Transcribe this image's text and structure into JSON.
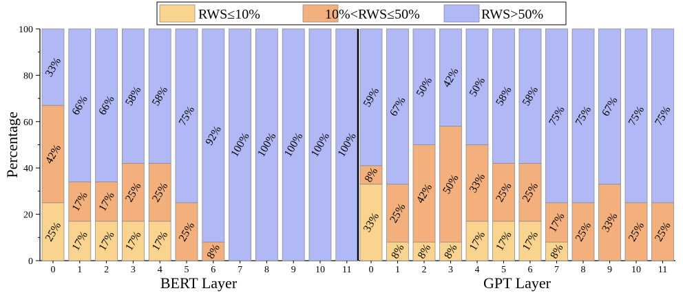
{
  "chart_data": {
    "type": "stacked-bar",
    "ylabel": "Percentage",
    "ylim": [
      0,
      100
    ],
    "yticks": [
      0,
      20,
      40,
      60,
      80,
      100
    ],
    "legend": {
      "position": "top-center",
      "entries": [
        {
          "name": "RWS≤10%",
          "color": "#fad48f"
        },
        {
          "name": "10%<RWS≤50%",
          "color": "#f3b07d"
        },
        {
          "name": "RWS>50%",
          "color": "#b1b8f6"
        }
      ]
    },
    "panels": [
      {
        "xlabel": "BERT Layer",
        "categories": [
          "0",
          "1",
          "2",
          "3",
          "4",
          "5",
          "6",
          "7",
          "8",
          "9",
          "10",
          "11"
        ],
        "series": [
          {
            "name": "RWS≤10%",
            "values": [
              25,
              17,
              17,
              17,
              17,
              0,
              0,
              0,
              0,
              0,
              0,
              0
            ],
            "labels": [
              "25%",
              "17%",
              "17%",
              "17%",
              "17%",
              "",
              "",
              "",
              "",
              "",
              "",
              ""
            ]
          },
          {
            "name": "10%<RWS≤50%",
            "values": [
              42,
              17,
              17,
              25,
              25,
              25,
              8,
              0,
              0,
              0,
              0,
              0
            ],
            "labels": [
              "42%",
              "17%",
              "17%",
              "25%",
              "25%",
              "25%",
              "8%",
              "",
              "",
              "",
              "",
              ""
            ]
          },
          {
            "name": "RWS>50%",
            "values": [
              33,
              66,
              66,
              58,
              58,
              75,
              92,
              100,
              100,
              100,
              100,
              100
            ],
            "labels": [
              "33%",
              "66%",
              "66%",
              "58%",
              "58%",
              "75%",
              "92%",
              "100%",
              "100%",
              "100%",
              "100%",
              "100%"
            ]
          }
        ]
      },
      {
        "xlabel": "GPT Layer",
        "categories": [
          "0",
          "1",
          "2",
          "3",
          "4",
          "5",
          "6",
          "7",
          "8",
          "9",
          "10",
          "11"
        ],
        "series": [
          {
            "name": "RWS≤10%",
            "values": [
              33,
              8,
              8,
              8,
              17,
              17,
              17,
              8,
              0,
              0,
              0,
              0
            ],
            "labels": [
              "33%",
              "8%",
              "8%",
              "8%",
              "17%",
              "17%",
              "17%",
              "8%",
              "",
              "",
              "",
              ""
            ]
          },
          {
            "name": "10%<RWS≤50%",
            "values": [
              8,
              25,
              42,
              50,
              33,
              25,
              25,
              17,
              25,
              33,
              25,
              25
            ],
            "labels": [
              "8%",
              "25%",
              "42%",
              "50%",
              "33%",
              "25%",
              "25%",
              "17%",
              "25%",
              "33%",
              "25%",
              "25%"
            ]
          },
          {
            "name": "RWS>50%",
            "values": [
              59,
              67,
              50,
              42,
              50,
              58,
              58,
              75,
              75,
              67,
              75,
              75
            ],
            "labels": [
              "59%",
              "67%",
              "50%",
              "42%",
              "50%",
              "58%",
              "58%",
              "75%",
              "75%",
              "67%",
              "75%",
              "75%"
            ]
          }
        ]
      }
    ]
  }
}
